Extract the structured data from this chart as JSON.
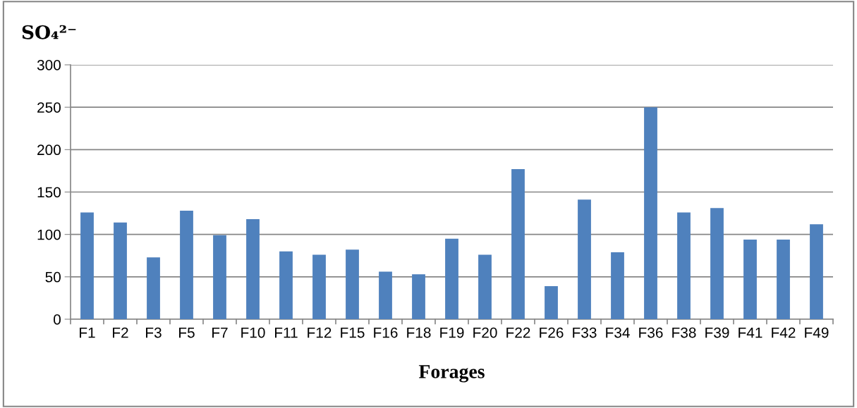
{
  "chart_data": {
    "type": "bar",
    "ylabel": "SO₄²⁻",
    "xlabel": "Forages",
    "categories": [
      "F1",
      "F2",
      "F3",
      "F5",
      "F7",
      "F10",
      "F11",
      "F12",
      "F15",
      "F16",
      "F18",
      "F19",
      "F20",
      "F22",
      "F26",
      "F33",
      "F34",
      "F36",
      "F38",
      "F39",
      "F41",
      "F42",
      "F49"
    ],
    "values": [
      126,
      114,
      73,
      128,
      99,
      118,
      80,
      76,
      82,
      56,
      53,
      95,
      76,
      177,
      39,
      141,
      79,
      250,
      126,
      131,
      94,
      94,
      112
    ],
    "color": "#4f81bd",
    "ylim": [
      0,
      300
    ],
    "yticks": [
      0,
      50,
      100,
      150,
      200,
      250,
      300
    ],
    "grid": "y"
  }
}
